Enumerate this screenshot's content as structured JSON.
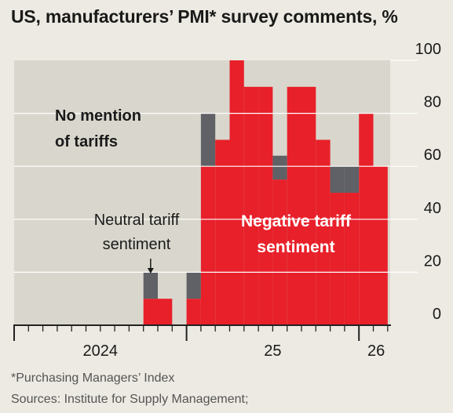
{
  "title": "US, manufacturers’ PMI* survey comments, %",
  "footnotes": {
    "definition": "*Purchasing Managers’ Index",
    "sources": "Sources: Institute for Supply Management;"
  },
  "colors": {
    "background": "#eceae2",
    "plot_area": "#d9d7cd",
    "negative": "#e8202a",
    "neutral": "#5f6166",
    "gridline": "#ffffff",
    "axis": "#222222",
    "text": "#1a1a1a"
  },
  "chart_data": {
    "type": "bar",
    "stacked": true,
    "title": "US, manufacturers’ PMI* survey comments, %",
    "xlabel": "",
    "ylabel": "",
    "ylim": [
      0,
      100
    ],
    "yticks": [
      0,
      20,
      40,
      60,
      80,
      100
    ],
    "y_axis_side": "right",
    "grid": true,
    "x_tick_labels": [
      "2024",
      "25",
      "26"
    ],
    "bars": [
      {
        "index": 9,
        "negative": 10,
        "neutral": 10
      },
      {
        "index": 10,
        "negative": 10,
        "neutral": 0
      },
      {
        "index": 12,
        "negative": 10,
        "neutral": 10
      },
      {
        "index": 13,
        "negative": 60,
        "neutral": 20
      },
      {
        "index": 14,
        "negative": 70,
        "neutral": 0
      },
      {
        "index": 15,
        "negative": 100,
        "neutral": 0
      },
      {
        "index": 16,
        "negative": 90,
        "neutral": 0
      },
      {
        "index": 17,
        "negative": 90,
        "neutral": 0
      },
      {
        "index": 18,
        "negative": 55,
        "neutral": 9
      },
      {
        "index": 19,
        "negative": 90,
        "neutral": 0
      },
      {
        "index": 20,
        "negative": 90,
        "neutral": 0
      },
      {
        "index": 21,
        "negative": 70,
        "neutral": 0
      },
      {
        "index": 22,
        "negative": 50,
        "neutral": 10
      },
      {
        "index": 23,
        "negative": 50,
        "neutral": 10
      },
      {
        "index": 24,
        "negative": 80,
        "neutral": 0
      },
      {
        "index": 25,
        "negative": 60,
        "neutral": 0
      }
    ],
    "annotations": {
      "no_mention": [
        "No mention",
        "of tariffs"
      ],
      "neutral": [
        "Neutral tariff",
        "sentiment"
      ],
      "negative": [
        "Negative tariff",
        "sentiment"
      ]
    }
  }
}
